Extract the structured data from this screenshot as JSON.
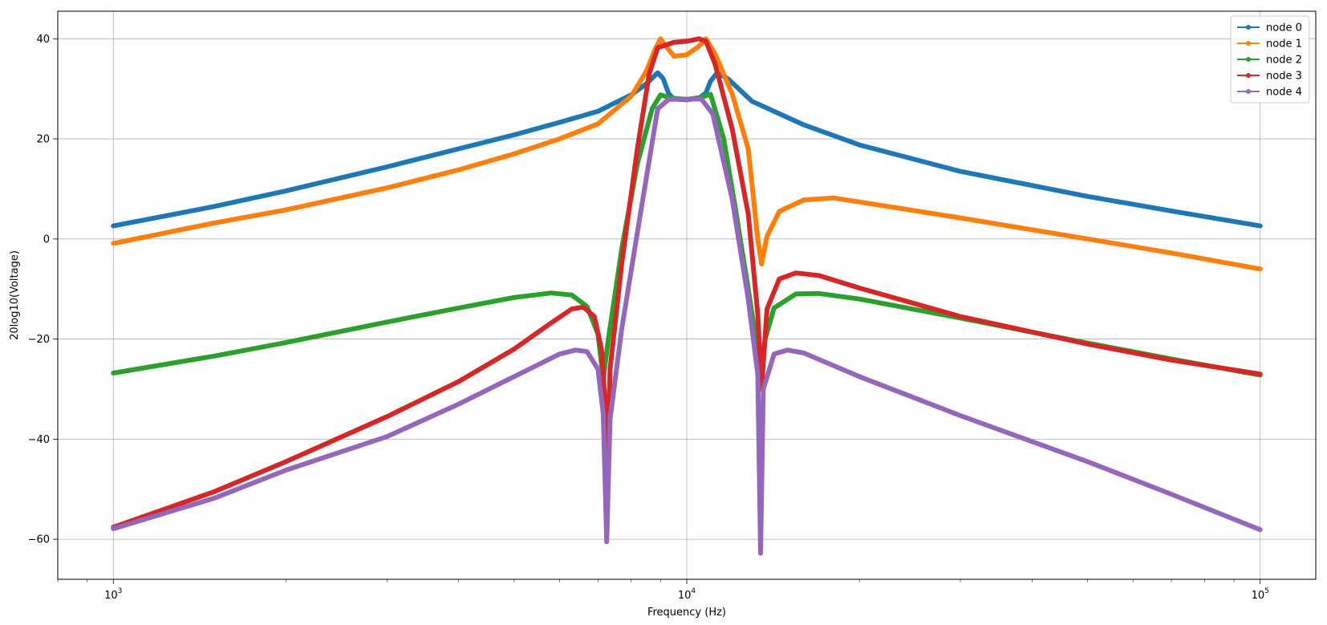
{
  "chart_data": {
    "type": "line",
    "title": "",
    "xlabel": "Frequency (Hz)",
    "ylabel": "20log10(Voltage)",
    "xscale": "log",
    "xlim": [
      800,
      125000
    ],
    "ylim": [
      -68,
      45.5
    ],
    "grid": true,
    "legend_position": "top-right",
    "x_ticks": [
      {
        "value": 1000,
        "base": "10",
        "exp": "3"
      },
      {
        "value": 10000,
        "base": "10",
        "exp": "4"
      },
      {
        "value": 100000,
        "base": "10",
        "exp": "5"
      }
    ],
    "y_ticks": [
      {
        "value": 40,
        "label": "40"
      },
      {
        "value": 20,
        "label": "20"
      },
      {
        "value": 0,
        "label": "0"
      },
      {
        "value": -20,
        "label": "−20"
      },
      {
        "value": -40,
        "label": "−40"
      },
      {
        "value": -60,
        "label": "−60"
      }
    ],
    "series": [
      {
        "name": "node 0",
        "color": "#1f77b4",
        "points": [
          [
            1000,
            2.6
          ],
          [
            1500,
            6.5
          ],
          [
            2000,
            9.6
          ],
          [
            3000,
            14.4
          ],
          [
            4000,
            18.0
          ],
          [
            5000,
            20.8
          ],
          [
            6000,
            23.3
          ],
          [
            7000,
            25.5
          ],
          [
            8000,
            28.8
          ],
          [
            8500,
            31.0
          ],
          [
            8900,
            33.2
          ],
          [
            9100,
            32.0
          ],
          [
            9300,
            29.0
          ],
          [
            9500,
            28.0
          ],
          [
            10000,
            27.8
          ],
          [
            10500,
            28.1
          ],
          [
            10800,
            29.2
          ],
          [
            11000,
            31.5
          ],
          [
            11300,
            33.2
          ],
          [
            11800,
            32.0
          ],
          [
            13000,
            27.5
          ],
          [
            16000,
            22.8
          ],
          [
            20000,
            18.8
          ],
          [
            30000,
            13.5
          ],
          [
            50000,
            8.5
          ],
          [
            70000,
            5.6
          ],
          [
            100000,
            2.6
          ]
        ]
      },
      {
        "name": "node 1",
        "color": "#ff7f0e",
        "points": [
          [
            1000,
            -0.9
          ],
          [
            1500,
            3.2
          ],
          [
            2000,
            5.8
          ],
          [
            3000,
            10.2
          ],
          [
            4000,
            13.8
          ],
          [
            5000,
            17.0
          ],
          [
            6000,
            20.0
          ],
          [
            7000,
            23.0
          ],
          [
            8000,
            28.5
          ],
          [
            8500,
            33.5
          ],
          [
            8800,
            37.8
          ],
          [
            9000,
            40.0
          ],
          [
            9200,
            38.5
          ],
          [
            9500,
            36.5
          ],
          [
            10000,
            36.8
          ],
          [
            10500,
            38.5
          ],
          [
            10800,
            40.0
          ],
          [
            11200,
            37.0
          ],
          [
            12000,
            29.0
          ],
          [
            12800,
            18.0
          ],
          [
            13300,
            0.0
          ],
          [
            13500,
            -5.0
          ],
          [
            13800,
            0.5
          ],
          [
            14500,
            5.5
          ],
          [
            16000,
            7.8
          ],
          [
            18000,
            8.2
          ],
          [
            20000,
            7.4
          ],
          [
            30000,
            4.2
          ],
          [
            50000,
            0.0
          ],
          [
            70000,
            -2.8
          ],
          [
            100000,
            -6.0
          ]
        ]
      },
      {
        "name": "node 2",
        "color": "#2ca02c",
        "points": [
          [
            1000,
            -26.8
          ],
          [
            1500,
            -23.4
          ],
          [
            2000,
            -20.7
          ],
          [
            3000,
            -16.6
          ],
          [
            4000,
            -13.8
          ],
          [
            5000,
            -11.7
          ],
          [
            5800,
            -10.8
          ],
          [
            6300,
            -11.2
          ],
          [
            6700,
            -13.5
          ],
          [
            7000,
            -19.0
          ],
          [
            7150,
            -28.0
          ],
          [
            7300,
            -20.0
          ],
          [
            7700,
            -2.0
          ],
          [
            8200,
            15.0
          ],
          [
            8700,
            26.0
          ],
          [
            9000,
            28.8
          ],
          [
            9400,
            28.1
          ],
          [
            10000,
            27.9
          ],
          [
            10600,
            28.3
          ],
          [
            11000,
            28.9
          ],
          [
            11600,
            20.0
          ],
          [
            12200,
            5.0
          ],
          [
            12800,
            -10.0
          ],
          [
            13200,
            -20.0
          ],
          [
            13450,
            -28.0
          ],
          [
            13700,
            -20.0
          ],
          [
            14200,
            -13.8
          ],
          [
            15500,
            -11.0
          ],
          [
            17000,
            -10.9
          ],
          [
            20000,
            -12.0
          ],
          [
            30000,
            -15.8
          ],
          [
            50000,
            -20.8
          ],
          [
            70000,
            -24.0
          ],
          [
            100000,
            -27.2
          ]
        ]
      },
      {
        "name": "node 3",
        "color": "#d62728",
        "points": [
          [
            1000,
            -57.6
          ],
          [
            1500,
            -50.5
          ],
          [
            2000,
            -44.5
          ],
          [
            3000,
            -35.5
          ],
          [
            4000,
            -28.5
          ],
          [
            5000,
            -22.0
          ],
          [
            5800,
            -16.8
          ],
          [
            6300,
            -14.0
          ],
          [
            6600,
            -13.6
          ],
          [
            6900,
            -15.5
          ],
          [
            7100,
            -22.0
          ],
          [
            7200,
            -32.0
          ],
          [
            7260,
            -51.0
          ],
          [
            7350,
            -26.0
          ],
          [
            7700,
            -5.0
          ],
          [
            8200,
            18.0
          ],
          [
            8600,
            33.0
          ],
          [
            8900,
            38.2
          ],
          [
            9500,
            39.3
          ],
          [
            10000,
            39.5
          ],
          [
            10500,
            40.0
          ],
          [
            10800,
            39.5
          ],
          [
            11200,
            35.0
          ],
          [
            12000,
            22.0
          ],
          [
            12800,
            5.0
          ],
          [
            13300,
            -15.0
          ],
          [
            13500,
            -30.0
          ],
          [
            13800,
            -14.0
          ],
          [
            14500,
            -8.0
          ],
          [
            15500,
            -6.8
          ],
          [
            17000,
            -7.3
          ],
          [
            20000,
            -9.8
          ],
          [
            30000,
            -15.5
          ],
          [
            50000,
            -21.0
          ],
          [
            70000,
            -24.2
          ],
          [
            100000,
            -27.0
          ]
        ]
      },
      {
        "name": "node 4",
        "color": "#9467bd",
        "points": [
          [
            1000,
            -57.9
          ],
          [
            1500,
            -51.8
          ],
          [
            2000,
            -46.2
          ],
          [
            3000,
            -39.5
          ],
          [
            4000,
            -33.0
          ],
          [
            5000,
            -27.5
          ],
          [
            6000,
            -23.0
          ],
          [
            6400,
            -22.2
          ],
          [
            6700,
            -22.5
          ],
          [
            7000,
            -26.0
          ],
          [
            7150,
            -35.0
          ],
          [
            7250,
            -60.5
          ],
          [
            7350,
            -36.0
          ],
          [
            7700,
            -18.0
          ],
          [
            8300,
            5.0
          ],
          [
            8900,
            26.0
          ],
          [
            9300,
            27.9
          ],
          [
            10000,
            27.9
          ],
          [
            10600,
            28.0
          ],
          [
            11100,
            25.0
          ],
          [
            12000,
            8.0
          ],
          [
            12800,
            -12.0
          ],
          [
            13300,
            -27.0
          ],
          [
            13450,
            -62.8
          ],
          [
            13600,
            -30.0
          ],
          [
            14200,
            -23.0
          ],
          [
            15000,
            -22.2
          ],
          [
            16000,
            -22.8
          ],
          [
            20000,
            -27.5
          ],
          [
            30000,
            -35.3
          ],
          [
            50000,
            -44.5
          ],
          [
            70000,
            -51.0
          ],
          [
            100000,
            -58.1
          ]
        ]
      }
    ]
  }
}
